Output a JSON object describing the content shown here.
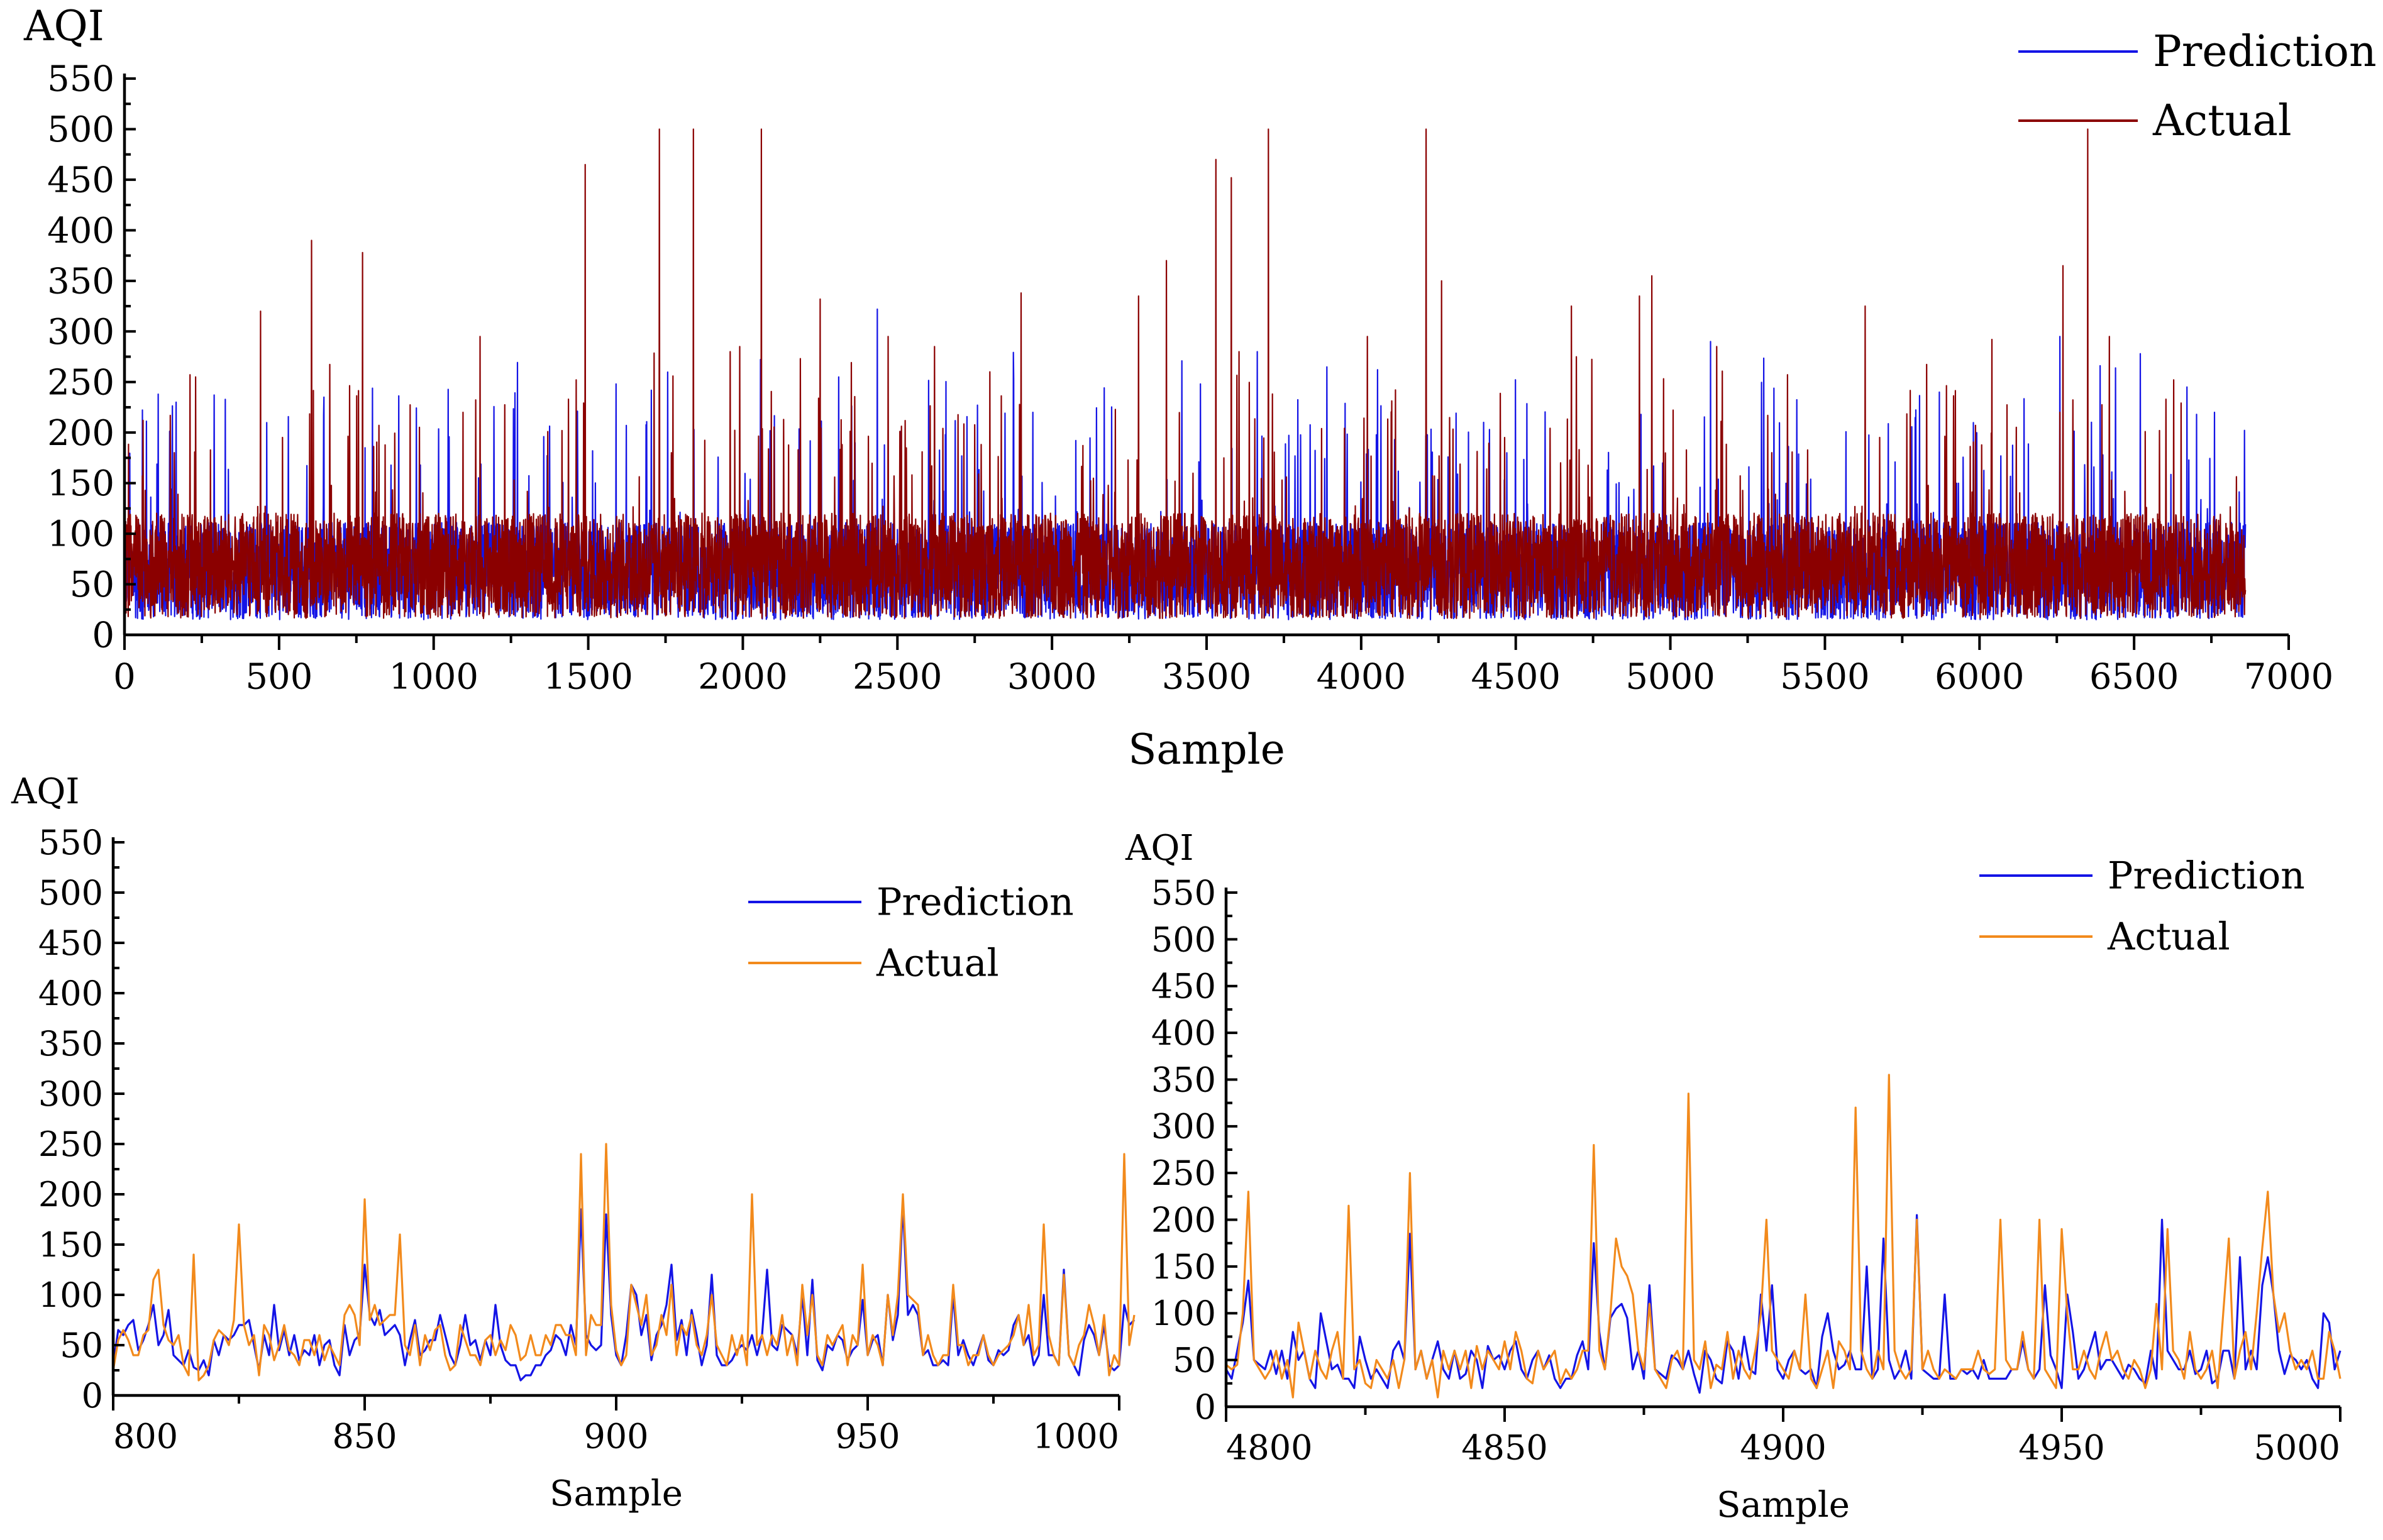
{
  "chart_data": [
    {
      "type": "line",
      "xlabel": "Sample",
      "ylabel": "AQI",
      "xlim": [
        0,
        7000
      ],
      "ylim": [
        0,
        550
      ],
      "x_ticks": [
        "0",
        "500",
        "1000",
        "1500",
        "2000",
        "2500",
        "3000",
        "3500",
        "4000",
        "4500",
        "5000",
        "5500",
        "6000",
        "6500",
        "7000"
      ],
      "y_ticks": [
        "0",
        "50",
        "100",
        "150",
        "200",
        "250",
        "300",
        "350",
        "400",
        "450",
        "500",
        "550"
      ],
      "n_samples": 6860,
      "legend_position": "top-right",
      "colors": {
        "Prediction": "#1414e6",
        "Actual": "#8b0000"
      },
      "series": [
        {
          "name": "Prediction",
          "baseline": 60,
          "peak_values": [
            [
              2435,
              322
            ],
            [
              5130,
              290
            ],
            [
              6260,
              295
            ],
            [
              6520,
              278
            ],
            [
              1590,
              248
            ],
            [
              2310,
              255
            ],
            [
              4680,
              272
            ],
            [
              5870,
              240
            ],
            [
              6760,
              220
            ]
          ]
        },
        {
          "name": "Actual",
          "baseline": 65,
          "peak_values": [
            [
              60,
              212
            ],
            [
              230,
              255
            ],
            [
              440,
              320
            ],
            [
              605,
              390
            ],
            [
              770,
              378
            ],
            [
              1150,
              295
            ],
            [
              1490,
              465
            ],
            [
              1730,
              500
            ],
            [
              1840,
              500
            ],
            [
              1990,
              285
            ],
            [
              2060,
              500
            ],
            [
              2250,
              332
            ],
            [
              2470,
              295
            ],
            [
              2620,
              285
            ],
            [
              2900,
              338
            ],
            [
              3280,
              335
            ],
            [
              3370,
              370
            ],
            [
              3530,
              470
            ],
            [
              3580,
              452
            ],
            [
              3700,
              500
            ],
            [
              4020,
              295
            ],
            [
              4210,
              500
            ],
            [
              4260,
              350
            ],
            [
              4680,
              325
            ],
            [
              4900,
              335
            ],
            [
              4940,
              355
            ],
            [
              5150,
              285
            ],
            [
              5630,
              325
            ],
            [
              6040,
              292
            ],
            [
              6270,
              365
            ],
            [
              6350,
              500
            ],
            [
              6420,
              295
            ]
          ]
        }
      ]
    },
    {
      "type": "line",
      "xlabel": "Sample",
      "ylabel": "AQI",
      "xlim": [
        800,
        1000
      ],
      "ylim": [
        0,
        550
      ],
      "x_ticks": [
        "800",
        "850",
        "900",
        "950",
        "1000"
      ],
      "y_ticks": [
        "0",
        "50",
        "100",
        "150",
        "200",
        "250",
        "300",
        "350",
        "400",
        "450",
        "500",
        "550"
      ],
      "legend_position": "top-right",
      "colors": {
        "Prediction": "#1414e6",
        "Actual": "#f28a1c"
      },
      "x_start": 800,
      "series": [
        {
          "name": "Prediction",
          "values": [
            30,
            65,
            60,
            70,
            75,
            45,
            55,
            70,
            90,
            50,
            60,
            85,
            40,
            35,
            30,
            45,
            28,
            25,
            35,
            20,
            55,
            40,
            60,
            55,
            60,
            70,
            70,
            75,
            50,
            25,
            60,
            40,
            90,
            45,
            65,
            40,
            60,
            35,
            45,
            40,
            60,
            30,
            50,
            55,
            30,
            20,
            70,
            40,
            55,
            60,
            130,
            80,
            70,
            85,
            60,
            65,
            70,
            60,
            30,
            55,
            75,
            40,
            45,
            55,
            55,
            80,
            60,
            40,
            30,
            50,
            80,
            50,
            55,
            35,
            55,
            40,
            90,
            50,
            35,
            30,
            30,
            15,
            20,
            20,
            30,
            30,
            40,
            45,
            60,
            55,
            40,
            70,
            50,
            185,
            60,
            50,
            45,
            50,
            180,
            80,
            40,
            30,
            60,
            110,
            100,
            60,
            80,
            35,
            60,
            70,
            90,
            130,
            55,
            75,
            40,
            85,
            60,
            30,
            50,
            120,
            40,
            30,
            30,
            35,
            45,
            50,
            45,
            60,
            40,
            60,
            125,
            50,
            45,
            70,
            65,
            60,
            40,
            100,
            40,
            115,
            35,
            25,
            50,
            45,
            60,
            55,
            35,
            45,
            50,
            95,
            40,
            55,
            60,
            30,
            100,
            55,
            80,
            190,
            80,
            90,
            80,
            40,
            45,
            30,
            30,
            35,
            30,
            100,
            40,
            55,
            40,
            30,
            45,
            60,
            35,
            30,
            45,
            40,
            45,
            70,
            80,
            50,
            60,
            30,
            40,
            100,
            40,
            40,
            30,
            125,
            40,
            30,
            20,
            55,
            70,
            60,
            40,
            70,
            30,
            25,
            30,
            90,
            70,
            75
          ]
        },
        {
          "name": "Actual",
          "values": [
            25,
            55,
            65,
            55,
            40,
            40,
            60,
            65,
            115,
            125,
            70,
            55,
            50,
            60,
            30,
            20,
            140,
            15,
            20,
            30,
            55,
            65,
            60,
            50,
            75,
            170,
            70,
            50,
            60,
            20,
            70,
            60,
            35,
            50,
            70,
            45,
            40,
            30,
            55,
            55,
            40,
            60,
            35,
            50,
            40,
            30,
            80,
            90,
            80,
            50,
            195,
            75,
            90,
            70,
            75,
            80,
            80,
            160,
            50,
            40,
            70,
            30,
            60,
            45,
            65,
            70,
            40,
            25,
            30,
            70,
            55,
            40,
            40,
            30,
            55,
            60,
            40,
            55,
            45,
            70,
            60,
            35,
            40,
            60,
            40,
            40,
            60,
            50,
            70,
            70,
            60,
            60,
            40,
            240,
            40,
            80,
            70,
            70,
            250,
            90,
            45,
            30,
            40,
            110,
            90,
            70,
            100,
            40,
            50,
            80,
            60,
            110,
            40,
            70,
            60,
            80,
            50,
            40,
            60,
            100,
            50,
            40,
            30,
            60,
            40,
            60,
            30,
            200,
            50,
            60,
            40,
            60,
            50,
            80,
            40,
            60,
            30,
            110,
            60,
            100,
            40,
            30,
            60,
            50,
            60,
            70,
            30,
            60,
            50,
            130,
            40,
            60,
            50,
            30,
            100,
            60,
            100,
            200,
            100,
            95,
            90,
            40,
            60,
            40,
            30,
            40,
            40,
            110,
            50,
            50,
            30,
            40,
            40,
            60,
            40,
            30,
            40,
            45,
            50,
            60,
            80,
            50,
            90,
            40,
            50,
            170,
            60,
            40,
            30,
            120,
            40,
            30,
            50,
            60,
            90,
            70,
            40,
            80,
            20,
            40,
            30,
            240,
            50,
            80
          ]
        }
      ]
    },
    {
      "type": "line",
      "xlabel": "Sample",
      "ylabel": "AQI",
      "xlim": [
        4800,
        5000
      ],
      "ylim": [
        0,
        550
      ],
      "x_ticks": [
        "4800",
        "4850",
        "4900",
        "4950",
        "5000"
      ],
      "y_ticks": [
        "0",
        "50",
        "100",
        "150",
        "200",
        "250",
        "300",
        "350",
        "400",
        "450",
        "500",
        "550"
      ],
      "legend_position": "top-right",
      "colors": {
        "Prediction": "#1414e6",
        "Actual": "#f28a1c"
      },
      "x_start": 4800,
      "series": [
        {
          "name": "Prediction",
          "values": [
            40,
            30,
            60,
            90,
            135,
            50,
            45,
            40,
            60,
            35,
            60,
            30,
            80,
            50,
            60,
            30,
            20,
            100,
            70,
            40,
            45,
            30,
            30,
            20,
            75,
            50,
            30,
            40,
            30,
            20,
            60,
            70,
            50,
            185,
            40,
            60,
            30,
            50,
            70,
            40,
            30,
            60,
            30,
            35,
            60,
            50,
            20,
            65,
            50,
            55,
            40,
            60,
            70,
            40,
            30,
            50,
            60,
            40,
            55,
            30,
            20,
            30,
            30,
            55,
            70,
            40,
            175,
            80,
            40,
            95,
            105,
            110,
            95,
            40,
            60,
            30,
            130,
            40,
            35,
            30,
            55,
            50,
            40,
            60,
            35,
            15,
            60,
            50,
            30,
            25,
            70,
            60,
            30,
            75,
            40,
            35,
            120,
            60,
            130,
            40,
            30,
            50,
            60,
            40,
            35,
            40,
            20,
            75,
            100,
            60,
            40,
            45,
            60,
            40,
            40,
            150,
            30,
            40,
            180,
            50,
            30,
            40,
            60,
            30,
            205,
            40,
            35,
            30,
            30,
            120,
            30,
            30,
            40,
            35,
            40,
            30,
            50,
            30,
            30,
            30,
            30,
            40,
            40,
            70,
            40,
            30,
            40,
            130,
            55,
            40,
            20,
            120,
            80,
            30,
            40,
            60,
            80,
            40,
            50,
            50,
            40,
            30,
            45,
            40,
            30,
            25,
            60,
            30,
            200,
            60,
            50,
            40,
            40,
            60,
            35,
            40,
            60,
            25,
            30,
            60,
            60,
            30,
            160,
            40,
            60,
            40,
            130,
            160,
            120,
            60,
            35,
            55,
            50,
            40,
            50,
            30,
            20,
            100,
            90,
            40,
            60
          ]
        },
        {
          "name": "Actual",
          "values": [
            45,
            40,
            45,
            100,
            230,
            50,
            40,
            30,
            40,
            60,
            30,
            50,
            10,
            90,
            60,
            30,
            60,
            40,
            30,
            60,
            80,
            30,
            215,
            40,
            50,
            25,
            20,
            50,
            40,
            30,
            50,
            20,
            50,
            250,
            40,
            60,
            30,
            50,
            10,
            60,
            40,
            60,
            40,
            60,
            20,
            65,
            40,
            60,
            50,
            40,
            70,
            40,
            80,
            60,
            30,
            25,
            60,
            40,
            50,
            60,
            25,
            40,
            30,
            40,
            60,
            60,
            280,
            60,
            40,
            100,
            180,
            150,
            140,
            120,
            60,
            40,
            110,
            40,
            30,
            20,
            50,
            60,
            40,
            335,
            50,
            40,
            70,
            20,
            45,
            40,
            80,
            30,
            60,
            40,
            30,
            60,
            100,
            200,
            60,
            50,
            40,
            30,
            60,
            40,
            120,
            30,
            20,
            40,
            60,
            20,
            70,
            60,
            40,
            320,
            60,
            40,
            30,
            60,
            40,
            355,
            60,
            40,
            30,
            40,
            200,
            40,
            60,
            40,
            30,
            40,
            35,
            30,
            40,
            40,
            40,
            60,
            40,
            35,
            40,
            200,
            50,
            40,
            40,
            80,
            40,
            30,
            200,
            40,
            30,
            20,
            190,
            100,
            40,
            40,
            60,
            40,
            30,
            60,
            80,
            50,
            60,
            40,
            30,
            50,
            40,
            20,
            40,
            110,
            40,
            190,
            60,
            50,
            30,
            80,
            40,
            30,
            40,
            60,
            20,
            100,
            180,
            30,
            60,
            80,
            40,
            100,
            170,
            230,
            120,
            80,
            100,
            60,
            40,
            50,
            40,
            60,
            30,
            30,
            80,
            60,
            30
          ]
        }
      ]
    }
  ]
}
